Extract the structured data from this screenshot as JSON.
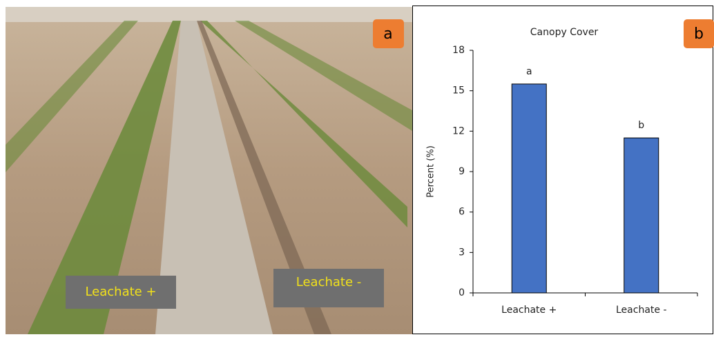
{
  "photo": {
    "panel_label": "a",
    "labels": [
      "Leachate +",
      "Leachate -"
    ]
  },
  "chart_data": {
    "type": "bar",
    "panel_label": "b",
    "title": "Canopy Cover",
    "y_label": "Percent (%)",
    "categories": [
      "Leachate +",
      "Leachate -"
    ],
    "values": [
      15.5,
      11.5
    ],
    "annotations": [
      "a",
      "b"
    ],
    "color": "#4472c4",
    "ylim": [
      0,
      18
    ],
    "yticks": [
      0,
      3,
      6,
      9,
      12,
      15,
      18
    ],
    "grid": false
  }
}
